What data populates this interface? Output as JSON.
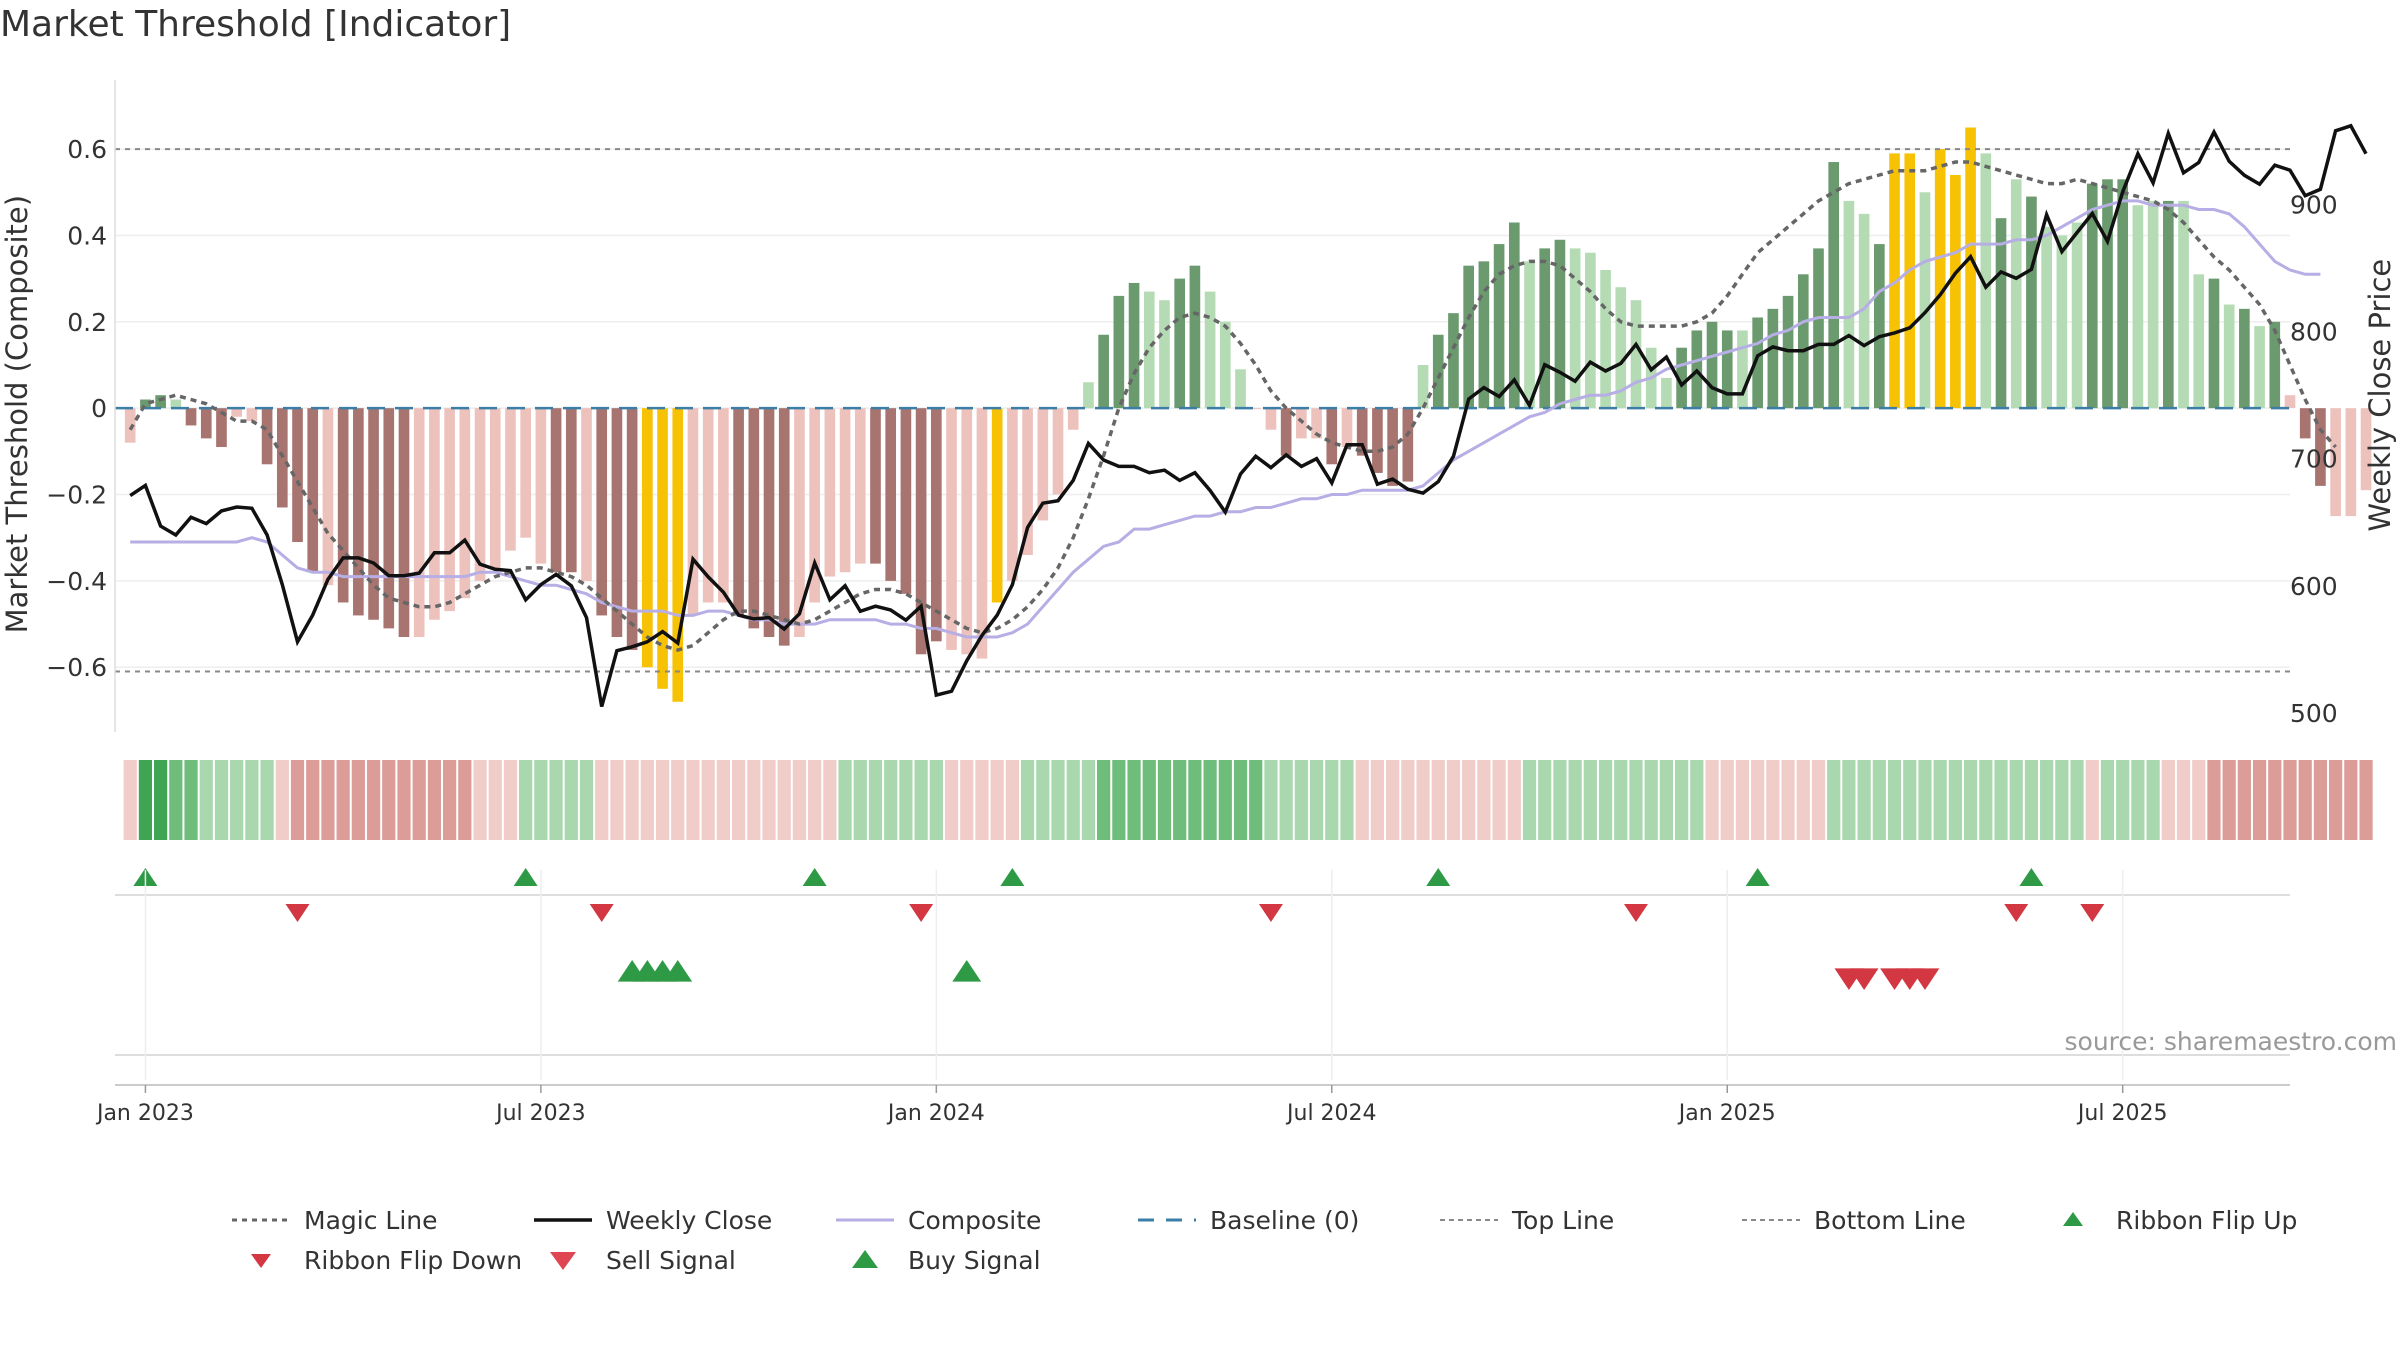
{
  "title": "Market Threshold [Indicator]",
  "source": "source: sharemaestro.com",
  "colors": {
    "green_dark": "#6a9a6e",
    "green_light": "#b4dbb4",
    "red_dark": "#a87470",
    "red_light": "#eec2bc",
    "yellow": "#f7c204",
    "close": "#111111",
    "composite": "#b6aee4",
    "magic": "#666666",
    "baseline": "#3d7ea6",
    "buy": "#2e9a46",
    "sell": "#d23742"
  },
  "chart_data": {
    "type": "bar",
    "title": "Market Threshold [Indicator]",
    "ylabel": "Market Threshold (Composite)",
    "y2label": "Weekly Close Price",
    "ylim": [
      -0.75,
      0.76
    ],
    "y2lim": [
      485,
      998
    ],
    "yticks": [
      0.6,
      0.4,
      0.2,
      0,
      -0.2,
      -0.4,
      -0.6
    ],
    "ytick_labels": [
      "0.6",
      "0.4",
      "0.2",
      "0",
      "−0.2",
      "−0.4",
      "−0.6"
    ],
    "y2ticks": [
      900,
      800,
      700,
      600,
      500
    ],
    "y2tick_labels": [
      "900",
      "800",
      "700",
      "600",
      "500"
    ],
    "xlim": [
      -1,
      142
    ],
    "xticks": [
      {
        "label": "Jan 2023",
        "week": 1
      },
      {
        "label": "Jul 2023",
        "week": 27
      },
      {
        "label": "Jan 2024",
        "week": 53
      },
      {
        "label": "Jul 2024",
        "week": 79
      },
      {
        "label": "Jan 2025",
        "week": 105
      },
      {
        "label": "Jul 2025",
        "week": 131
      }
    ],
    "top_line": 0.6,
    "bottom_line": -0.61,
    "baseline": 0,
    "grid": true,
    "legend_position": "bottom",
    "series": [
      {
        "name": "Market Threshold (Composite)",
        "kind": "bar",
        "values": [
          -0.08,
          0.02,
          0.03,
          0.02,
          -0.04,
          -0.07,
          -0.09,
          -0.02,
          -0.03,
          -0.13,
          -0.23,
          -0.31,
          -0.38,
          -0.41,
          -0.45,
          -0.48,
          -0.49,
          -0.51,
          -0.53,
          -0.53,
          -0.49,
          -0.47,
          -0.44,
          -0.4,
          -0.37,
          -0.33,
          -0.3,
          -0.36,
          -0.38,
          -0.38,
          -0.4,
          -0.48,
          -0.53,
          -0.56,
          -0.6,
          -0.65,
          -0.68,
          -0.48,
          -0.45,
          -0.45,
          -0.48,
          -0.51,
          -0.53,
          -0.55,
          -0.53,
          -0.45,
          -0.39,
          -0.38,
          -0.36,
          -0.36,
          -0.4,
          -0.43,
          -0.57,
          -0.54,
          -0.56,
          -0.57,
          -0.58,
          -0.45,
          -0.4,
          -0.34,
          -0.26,
          -0.2,
          -0.05,
          0.06,
          0.17,
          0.26,
          0.29,
          0.27,
          0.25,
          0.3,
          0.33,
          0.27,
          0.2,
          0.09,
          0,
          -0.05,
          -0.11,
          -0.07,
          -0.07,
          -0.13,
          -0.09,
          -0.11,
          -0.15,
          -0.18,
          -0.17,
          0.1,
          0.17,
          0.22,
          0.33,
          0.34,
          0.38,
          0.43,
          0.34,
          0.37,
          0.39,
          0.37,
          0.36,
          0.32,
          0.28,
          0.25,
          0.14,
          0.07,
          0.14,
          0.18,
          0.2,
          0.18,
          0.18,
          0.21,
          0.23,
          0.26,
          0.31,
          0.37,
          0.57,
          0.48,
          0.45,
          0.38,
          0.59,
          0.59,
          0.5,
          0.6,
          0.54,
          0.65,
          0.59,
          0.44,
          0.53,
          0.49,
          0.42,
          0.4,
          0.43,
          0.52,
          0.53,
          0.53,
          0.47,
          0.48,
          0.48,
          0.48,
          0.31,
          0.3,
          0.24,
          0.23,
          0.19,
          0.2,
          0.03,
          -0.07,
          -0.18,
          -0.25,
          -0.25,
          -0.19
        ],
        "colors": [
          "rl",
          "gd",
          "gd",
          "gl",
          "rd",
          "rd",
          "rd",
          "rl",
          "rl",
          "rd",
          "rd",
          "rd",
          "rd",
          "rl",
          "rd",
          "rd",
          "rd",
          "rd",
          "rd",
          "rl",
          "rl",
          "rl",
          "rl",
          "rl",
          "rl",
          "rl",
          "rl",
          "rl",
          "rd",
          "rd",
          "rl",
          "rd",
          "rd",
          "rd",
          "y",
          "y",
          "y",
          "rl",
          "rl",
          "rl",
          "rd",
          "rd",
          "rd",
          "rd",
          "rl",
          "rl",
          "rl",
          "rl",
          "rl",
          "rd",
          "rd",
          "rd",
          "rd",
          "rd",
          "rl",
          "rl",
          "rl",
          "y",
          "rl",
          "rl",
          "rl",
          "rl",
          "rl",
          "gl",
          "gd",
          "gd",
          "gd",
          "gl",
          "gl",
          "gd",
          "gd",
          "gl",
          "gl",
          "gl",
          "rl",
          "rl",
          "rd",
          "rl",
          "rl",
          "rd",
          "rl",
          "rd",
          "rd",
          "rd",
          "rd",
          "gl",
          "gd",
          "gd",
          "gd",
          "gd",
          "gd",
          "gd",
          "gl",
          "gd",
          "gd",
          "gl",
          "gl",
          "gl",
          "gl",
          "gl",
          "gl",
          "gl",
          "gd",
          "gd",
          "gd",
          "gd",
          "gl",
          "gd",
          "gd",
          "gd",
          "gd",
          "gd",
          "gd",
          "gl",
          "gl",
          "gd",
          "y",
          "y",
          "gl",
          "y",
          "y",
          "y",
          "gl",
          "gd",
          "gl",
          "gd",
          "gl",
          "gl",
          "gl",
          "gd",
          "gd",
          "gd",
          "gl",
          "gl",
          "gd",
          "gl",
          "gl",
          "gd",
          "gl",
          "gd",
          "gl",
          "gd",
          "rl",
          "rd",
          "rd",
          "rl",
          "rl"
        ]
      },
      {
        "name": "Magic Line",
        "kind": "line",
        "values": [
          -0.05,
          0.01,
          0.02,
          0.03,
          0.02,
          0.01,
          -0.01,
          -0.03,
          -0.03,
          -0.05,
          -0.11,
          -0.17,
          -0.23,
          -0.29,
          -0.33,
          -0.37,
          -0.41,
          -0.44,
          -0.45,
          -0.46,
          -0.46,
          -0.45,
          -0.43,
          -0.41,
          -0.39,
          -0.38,
          -0.37,
          -0.37,
          -0.38,
          -0.39,
          -0.41,
          -0.44,
          -0.47,
          -0.5,
          -0.53,
          -0.55,
          -0.56,
          -0.55,
          -0.52,
          -0.49,
          -0.47,
          -0.47,
          -0.48,
          -0.49,
          -0.5,
          -0.49,
          -0.47,
          -0.45,
          -0.43,
          -0.42,
          -0.42,
          -0.43,
          -0.45,
          -0.47,
          -0.49,
          -0.51,
          -0.52,
          -0.51,
          -0.49,
          -0.46,
          -0.42,
          -0.37,
          -0.3,
          -0.21,
          -0.11,
          0,
          0.08,
          0.14,
          0.18,
          0.21,
          0.22,
          0.21,
          0.19,
          0.15,
          0.1,
          0.04,
          0,
          -0.03,
          -0.06,
          -0.08,
          -0.09,
          -0.1,
          -0.1,
          -0.09,
          -0.06,
          0,
          0.07,
          0.14,
          0.21,
          0.27,
          0.31,
          0.33,
          0.34,
          0.34,
          0.33,
          0.3,
          0.27,
          0.23,
          0.2,
          0.19,
          0.19,
          0.19,
          0.19,
          0.2,
          0.22,
          0.26,
          0.31,
          0.36,
          0.39,
          0.42,
          0.45,
          0.48,
          0.5,
          0.52,
          0.53,
          0.54,
          0.55,
          0.55,
          0.55,
          0.56,
          0.57,
          0.57,
          0.56,
          0.55,
          0.54,
          0.53,
          0.52,
          0.52,
          0.53,
          0.52,
          0.51,
          0.5,
          0.49,
          0.48,
          0.46,
          0.43,
          0.39,
          0.35,
          0.32,
          0.28,
          0.24,
          0.18,
          0.1,
          0.02,
          -0.05,
          -0.09
        ]
      },
      {
        "name": "Composite",
        "kind": "line",
        "values": [
          -0.31,
          -0.31,
          -0.31,
          -0.31,
          -0.31,
          -0.31,
          -0.31,
          -0.31,
          -0.3,
          -0.31,
          -0.34,
          -0.37,
          -0.38,
          -0.38,
          -0.39,
          -0.39,
          -0.39,
          -0.39,
          -0.39,
          -0.39,
          -0.39,
          -0.39,
          -0.39,
          -0.38,
          -0.38,
          -0.39,
          -0.4,
          -0.41,
          -0.41,
          -0.42,
          -0.43,
          -0.45,
          -0.46,
          -0.47,
          -0.47,
          -0.47,
          -0.48,
          -0.48,
          -0.47,
          -0.47,
          -0.48,
          -0.49,
          -0.49,
          -0.5,
          -0.5,
          -0.5,
          -0.49,
          -0.49,
          -0.49,
          -0.49,
          -0.5,
          -0.5,
          -0.51,
          -0.51,
          -0.52,
          -0.53,
          -0.53,
          -0.53,
          -0.52,
          -0.5,
          -0.46,
          -0.42,
          -0.38,
          -0.35,
          -0.32,
          -0.31,
          -0.28,
          -0.28,
          -0.27,
          -0.26,
          -0.25,
          -0.25,
          -0.24,
          -0.24,
          -0.23,
          -0.23,
          -0.22,
          -0.21,
          -0.21,
          -0.2,
          -0.2,
          -0.19,
          -0.19,
          -0.19,
          -0.19,
          -0.18,
          -0.15,
          -0.12,
          -0.1,
          -0.08,
          -0.06,
          -0.04,
          -0.02,
          -0.01,
          0.01,
          0.02,
          0.03,
          0.03,
          0.04,
          0.06,
          0.07,
          0.09,
          0.1,
          0.11,
          0.12,
          0.13,
          0.14,
          0.15,
          0.17,
          0.18,
          0.2,
          0.21,
          0.21,
          0.21,
          0.23,
          0.27,
          0.29,
          0.32,
          0.34,
          0.35,
          0.36,
          0.38,
          0.38,
          0.38,
          0.39,
          0.39,
          0.4,
          0.42,
          0.44,
          0.46,
          0.47,
          0.48,
          0.48,
          0.47,
          0.47,
          0.47,
          0.46,
          0.46,
          0.45,
          0.42,
          0.38,
          0.34,
          0.32,
          0.31,
          0.31
        ]
      },
      {
        "name": "Weekly Close",
        "kind": "line",
        "axis": "right",
        "values": [
          671,
          679,
          647,
          640,
          654,
          649,
          659,
          662,
          661,
          640,
          601,
          556,
          577,
          605,
          622,
          622,
          618,
          608,
          608,
          610,
          626,
          626,
          636,
          617,
          613,
          612,
          589,
          601,
          609,
          600,
          575,
          505,
          549,
          552,
          556,
          564,
          555,
          621,
          607,
          595,
          577,
          574,
          575,
          566,
          578,
          618,
          589,
          600,
          580,
          584,
          581,
          573,
          584,
          514,
          517,
          541,
          561,
          577,
          601,
          646,
          665,
          667,
          683,
          712,
          699,
          694,
          694,
          689,
          691,
          683,
          689,
          675,
          658,
          688,
          702,
          693,
          703,
          694,
          700,
          681,
          711,
          711,
          680,
          684,
          676,
          673,
          682,
          702,
          747,
          756,
          749,
          762,
          742,
          774,
          768,
          761,
          776,
          769,
          775,
          790,
          770,
          780,
          758,
          769,
          756,
          751,
          751,
          781,
          788,
          785,
          785,
          790,
          790,
          797,
          789,
          796,
          799,
          803,
          815,
          829,
          846,
          859,
          835,
          847,
          842,
          849,
          892,
          863,
          878,
          893,
          871,
          910,
          940,
          917,
          956,
          925,
          933,
          957,
          934,
          923,
          916,
          931,
          927,
          907,
          912,
          958,
          962,
          940
        ],
        "close_values_all": [
          671,
          679,
          647,
          640,
          654,
          649,
          659,
          662,
          661,
          640,
          601,
          556,
          577,
          605,
          622,
          622,
          618,
          608,
          608,
          610,
          626,
          626,
          636,
          617,
          613,
          612,
          589,
          601,
          609,
          600,
          575,
          505,
          549,
          552,
          556,
          564,
          555,
          621,
          607,
          595,
          577,
          574,
          575,
          566,
          578,
          618,
          589,
          600,
          580,
          584,
          581,
          573,
          584,
          514,
          517,
          541,
          561,
          577,
          601,
          646,
          665,
          667,
          683,
          712,
          699,
          694,
          694,
          689,
          691,
          683,
          689,
          675,
          658,
          688,
          702,
          693,
          703,
          694,
          700,
          681,
          711,
          711,
          680,
          684,
          676,
          673,
          682,
          702,
          747,
          756,
          749,
          762,
          742,
          774,
          768,
          761,
          776,
          769,
          775,
          790,
          770,
          780,
          758,
          769,
          756,
          751,
          751,
          781,
          788,
          785,
          785,
          790,
          790,
          797,
          789,
          796,
          799,
          803,
          815,
          829,
          846,
          859,
          835,
          847,
          842,
          849,
          892,
          863,
          878,
          893,
          871,
          910,
          940,
          917,
          956,
          925,
          933,
          957,
          934,
          923,
          916,
          931,
          927,
          907,
          912,
          958,
          962,
          940
        ]
      }
    ],
    "ribbon": [
      "rl",
      "gd",
      "gd",
      "gm",
      "gm",
      "gl",
      "gl",
      "gl",
      "gl",
      "gl",
      "rl",
      "rm",
      "rm",
      "rm",
      "rm",
      "rm",
      "rm",
      "rm",
      "rm",
      "rm",
      "rm",
      "rm",
      "rm",
      "rl",
      "rl",
      "rl",
      "gl",
      "gl",
      "gl",
      "gl",
      "gl",
      "rl",
      "rl",
      "rl",
      "rl",
      "rl",
      "rl",
      "rl",
      "rl",
      "rl",
      "rl",
      "rl",
      "rl",
      "rl",
      "rl",
      "rl",
      "rl",
      "gl",
      "gl",
      "gl",
      "gl",
      "gl",
      "gl",
      "gl",
      "rl",
      "rl",
      "rl",
      "rl",
      "rl",
      "gl",
      "gl",
      "gl",
      "gl",
      "gl",
      "gm",
      "gm",
      "gm",
      "gm",
      "gm",
      "gm",
      "gm",
      "gm",
      "gm",
      "gm",
      "gm",
      "gl",
      "gl",
      "gl",
      "gl",
      "gl",
      "gl",
      "rl",
      "rl",
      "rl",
      "rl",
      "rl",
      "rl",
      "rl",
      "rl",
      "rl",
      "rl",
      "rl",
      "gl",
      "gl",
      "gl",
      "gl",
      "gl",
      "gl",
      "gl",
      "gl",
      "gl",
      "gl",
      "gl",
      "gl",
      "rl",
      "rl",
      "rl",
      "rl",
      "rl",
      "rl",
      "rl",
      "rl",
      "gl",
      "gl",
      "gl",
      "gl",
      "gl",
      "gl",
      "gl",
      "gl",
      "gl",
      "gl",
      "gl",
      "gl",
      "gl",
      "gl",
      "gl",
      "gl",
      "gl",
      "rl",
      "gl",
      "gl",
      "gl",
      "gl",
      "rl",
      "rl",
      "rl",
      "rm",
      "rm",
      "rm",
      "rm",
      "rm",
      "rm",
      "rm",
      "rm",
      "rm",
      "rm",
      "rm"
    ],
    "ribbon_flip_up": [
      1,
      26,
      45,
      58,
      86,
      107,
      125
    ],
    "ribbon_flip_down": [
      11,
      31,
      52,
      75,
      99,
      124,
      129
    ],
    "buy_signal": [
      33,
      34,
      35,
      36,
      55
    ],
    "sell_signal": [
      113,
      114,
      116,
      117,
      118
    ]
  },
  "legend": [
    {
      "label": "Magic Line",
      "key": "magic-line-key"
    },
    {
      "label": "Weekly Close",
      "key": "weekly-close-key"
    },
    {
      "label": "Composite",
      "key": "composite-key"
    },
    {
      "label": "Baseline (0)",
      "key": "baseline-key"
    },
    {
      "label": "Top Line",
      "key": "top-line-key"
    },
    {
      "label": "Bottom Line",
      "key": "bottom-line-key"
    },
    {
      "label": "Ribbon Flip Up",
      "key": "ribbon-flip-up-key"
    },
    {
      "label": "Ribbon Flip Down",
      "key": "ribbon-flip-down-key"
    },
    {
      "label": "Sell Signal",
      "key": "sell-signal-key"
    },
    {
      "label": "Buy Signal",
      "key": "buy-signal-key"
    }
  ]
}
